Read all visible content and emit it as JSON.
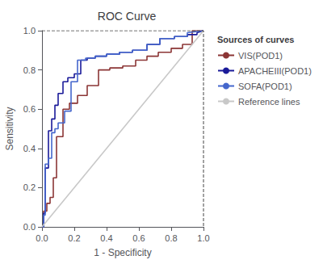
{
  "chart_data": {
    "type": "line",
    "title": "ROC Curve",
    "xlabel": "1 - Specificity",
    "ylabel": "Sensitivity",
    "legend_title": "Sources of curves",
    "legend": "right",
    "grid": false,
    "xlim": [
      0.0,
      1.0
    ],
    "ylim": [
      0.0,
      1.0
    ],
    "xticks": [
      {
        "value": 0.0,
        "label": "0.0"
      },
      0.2,
      0.4,
      0.6,
      0.8,
      {
        "value": 1.0,
        "label": "1.0"
      }
    ],
    "yticks": [
      {
        "value": 0.0,
        "label": "0.0"
      },
      0.2,
      0.4,
      0.6,
      0.8,
      {
        "value": 1.0,
        "label": "1.0"
      }
    ],
    "series": [
      {
        "name": "VIS(POD1)",
        "color": "#8B3535",
        "x": [
          0.0,
          0.01,
          0.01,
          0.03,
          0.03,
          0.05,
          0.05,
          0.07,
          0.07,
          0.09,
          0.09,
          0.13,
          0.13,
          0.17,
          0.17,
          0.22,
          0.22,
          0.28,
          0.28,
          0.35,
          0.35,
          0.42,
          0.42,
          0.5,
          0.5,
          0.58,
          0.58,
          0.65,
          0.65,
          0.72,
          0.72,
          0.8,
          0.8,
          0.87,
          0.87,
          0.93,
          0.93,
          1.0
        ],
        "values": [
          0.0,
          0.0,
          0.08,
          0.08,
          0.12,
          0.12,
          0.15,
          0.15,
          0.25,
          0.25,
          0.46,
          0.46,
          0.6,
          0.6,
          0.63,
          0.63,
          0.67,
          0.67,
          0.72,
          0.72,
          0.8,
          0.8,
          0.81,
          0.81,
          0.82,
          0.82,
          0.85,
          0.85,
          0.87,
          0.87,
          0.89,
          0.89,
          0.91,
          0.91,
          0.93,
          0.93,
          1.0,
          1.0
        ]
      },
      {
        "name": "APACHEIII(POD1)",
        "color": "#1A1A99",
        "x": [
          0.0,
          0.01,
          0.01,
          0.02,
          0.02,
          0.04,
          0.04,
          0.06,
          0.06,
          0.08,
          0.08,
          0.1,
          0.1,
          0.13,
          0.13,
          0.16,
          0.16,
          0.2,
          0.2,
          0.24,
          0.24,
          0.28,
          0.28,
          0.33,
          0.33,
          0.4,
          0.4,
          0.48,
          0.48,
          0.56,
          0.56,
          0.65,
          0.65,
          0.73,
          0.73,
          0.82,
          0.82,
          0.9,
          0.9,
          0.96,
          0.96,
          1.0
        ],
        "values": [
          0.0,
          0.0,
          0.07,
          0.07,
          0.3,
          0.3,
          0.49,
          0.49,
          0.55,
          0.55,
          0.62,
          0.62,
          0.68,
          0.68,
          0.74,
          0.74,
          0.76,
          0.76,
          0.78,
          0.78,
          0.85,
          0.85,
          0.86,
          0.86,
          0.87,
          0.87,
          0.88,
          0.88,
          0.89,
          0.89,
          0.9,
          0.9,
          0.93,
          0.93,
          0.96,
          0.96,
          0.97,
          0.97,
          0.98,
          0.98,
          0.99,
          1.0
        ]
      },
      {
        "name": "SOFA(POD1)",
        "color": "#4466CC",
        "x": [
          0.0,
          0.01,
          0.01,
          0.02,
          0.02,
          0.04,
          0.04,
          0.06,
          0.06,
          0.08,
          0.08,
          0.1,
          0.1,
          0.14,
          0.14,
          0.18,
          0.18,
          0.22,
          0.22,
          0.27,
          0.27,
          0.33,
          0.33,
          0.4,
          0.4,
          0.48,
          0.48,
          0.56,
          0.56,
          0.65,
          0.65,
          0.73,
          0.73,
          0.82,
          0.82,
          0.9,
          0.9,
          1.0
        ],
        "values": [
          0.0,
          0.0,
          0.06,
          0.06,
          0.32,
          0.32,
          0.35,
          0.35,
          0.48,
          0.48,
          0.5,
          0.5,
          0.53,
          0.53,
          0.59,
          0.59,
          0.74,
          0.74,
          0.85,
          0.85,
          0.86,
          0.86,
          0.87,
          0.87,
          0.88,
          0.88,
          0.89,
          0.89,
          0.9,
          0.9,
          0.93,
          0.93,
          0.96,
          0.96,
          0.97,
          0.97,
          0.99,
          1.0
        ]
      },
      {
        "name": "Reference lines",
        "color": "#C8C8C8",
        "x": [
          0,
          1
        ],
        "values": [
          0,
          1
        ]
      },
      {
        "color": "#444444",
        "line_style": "dashed",
        "x": [
          0,
          1,
          1
        ],
        "values": [
          1,
          1,
          0
        ]
      }
    ]
  }
}
